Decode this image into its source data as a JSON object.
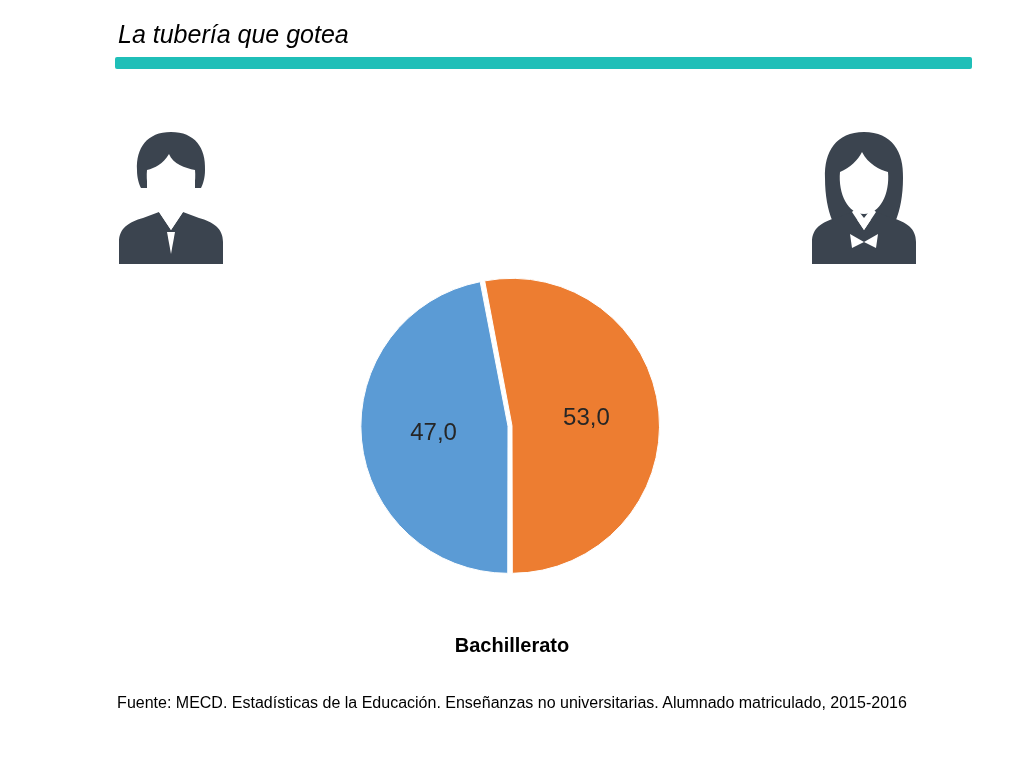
{
  "chart_data": {
    "type": "pie",
    "title": "La tubería que gotea",
    "subtitle": "Bachillerato",
    "categories": [
      null,
      null
    ],
    "values": [
      47.0,
      53.0
    ],
    "colors": [
      "#5b9bd5",
      "#ed7d31"
    ],
    "value_labels": [
      "47,0",
      "53,0"
    ],
    "legend": false,
    "annotations": [
      "Fuente: MECD. Estadísticas de la Educación. Enseñanzas no universitarias. Alumnado matriculado, 2015-2016"
    ]
  }
}
